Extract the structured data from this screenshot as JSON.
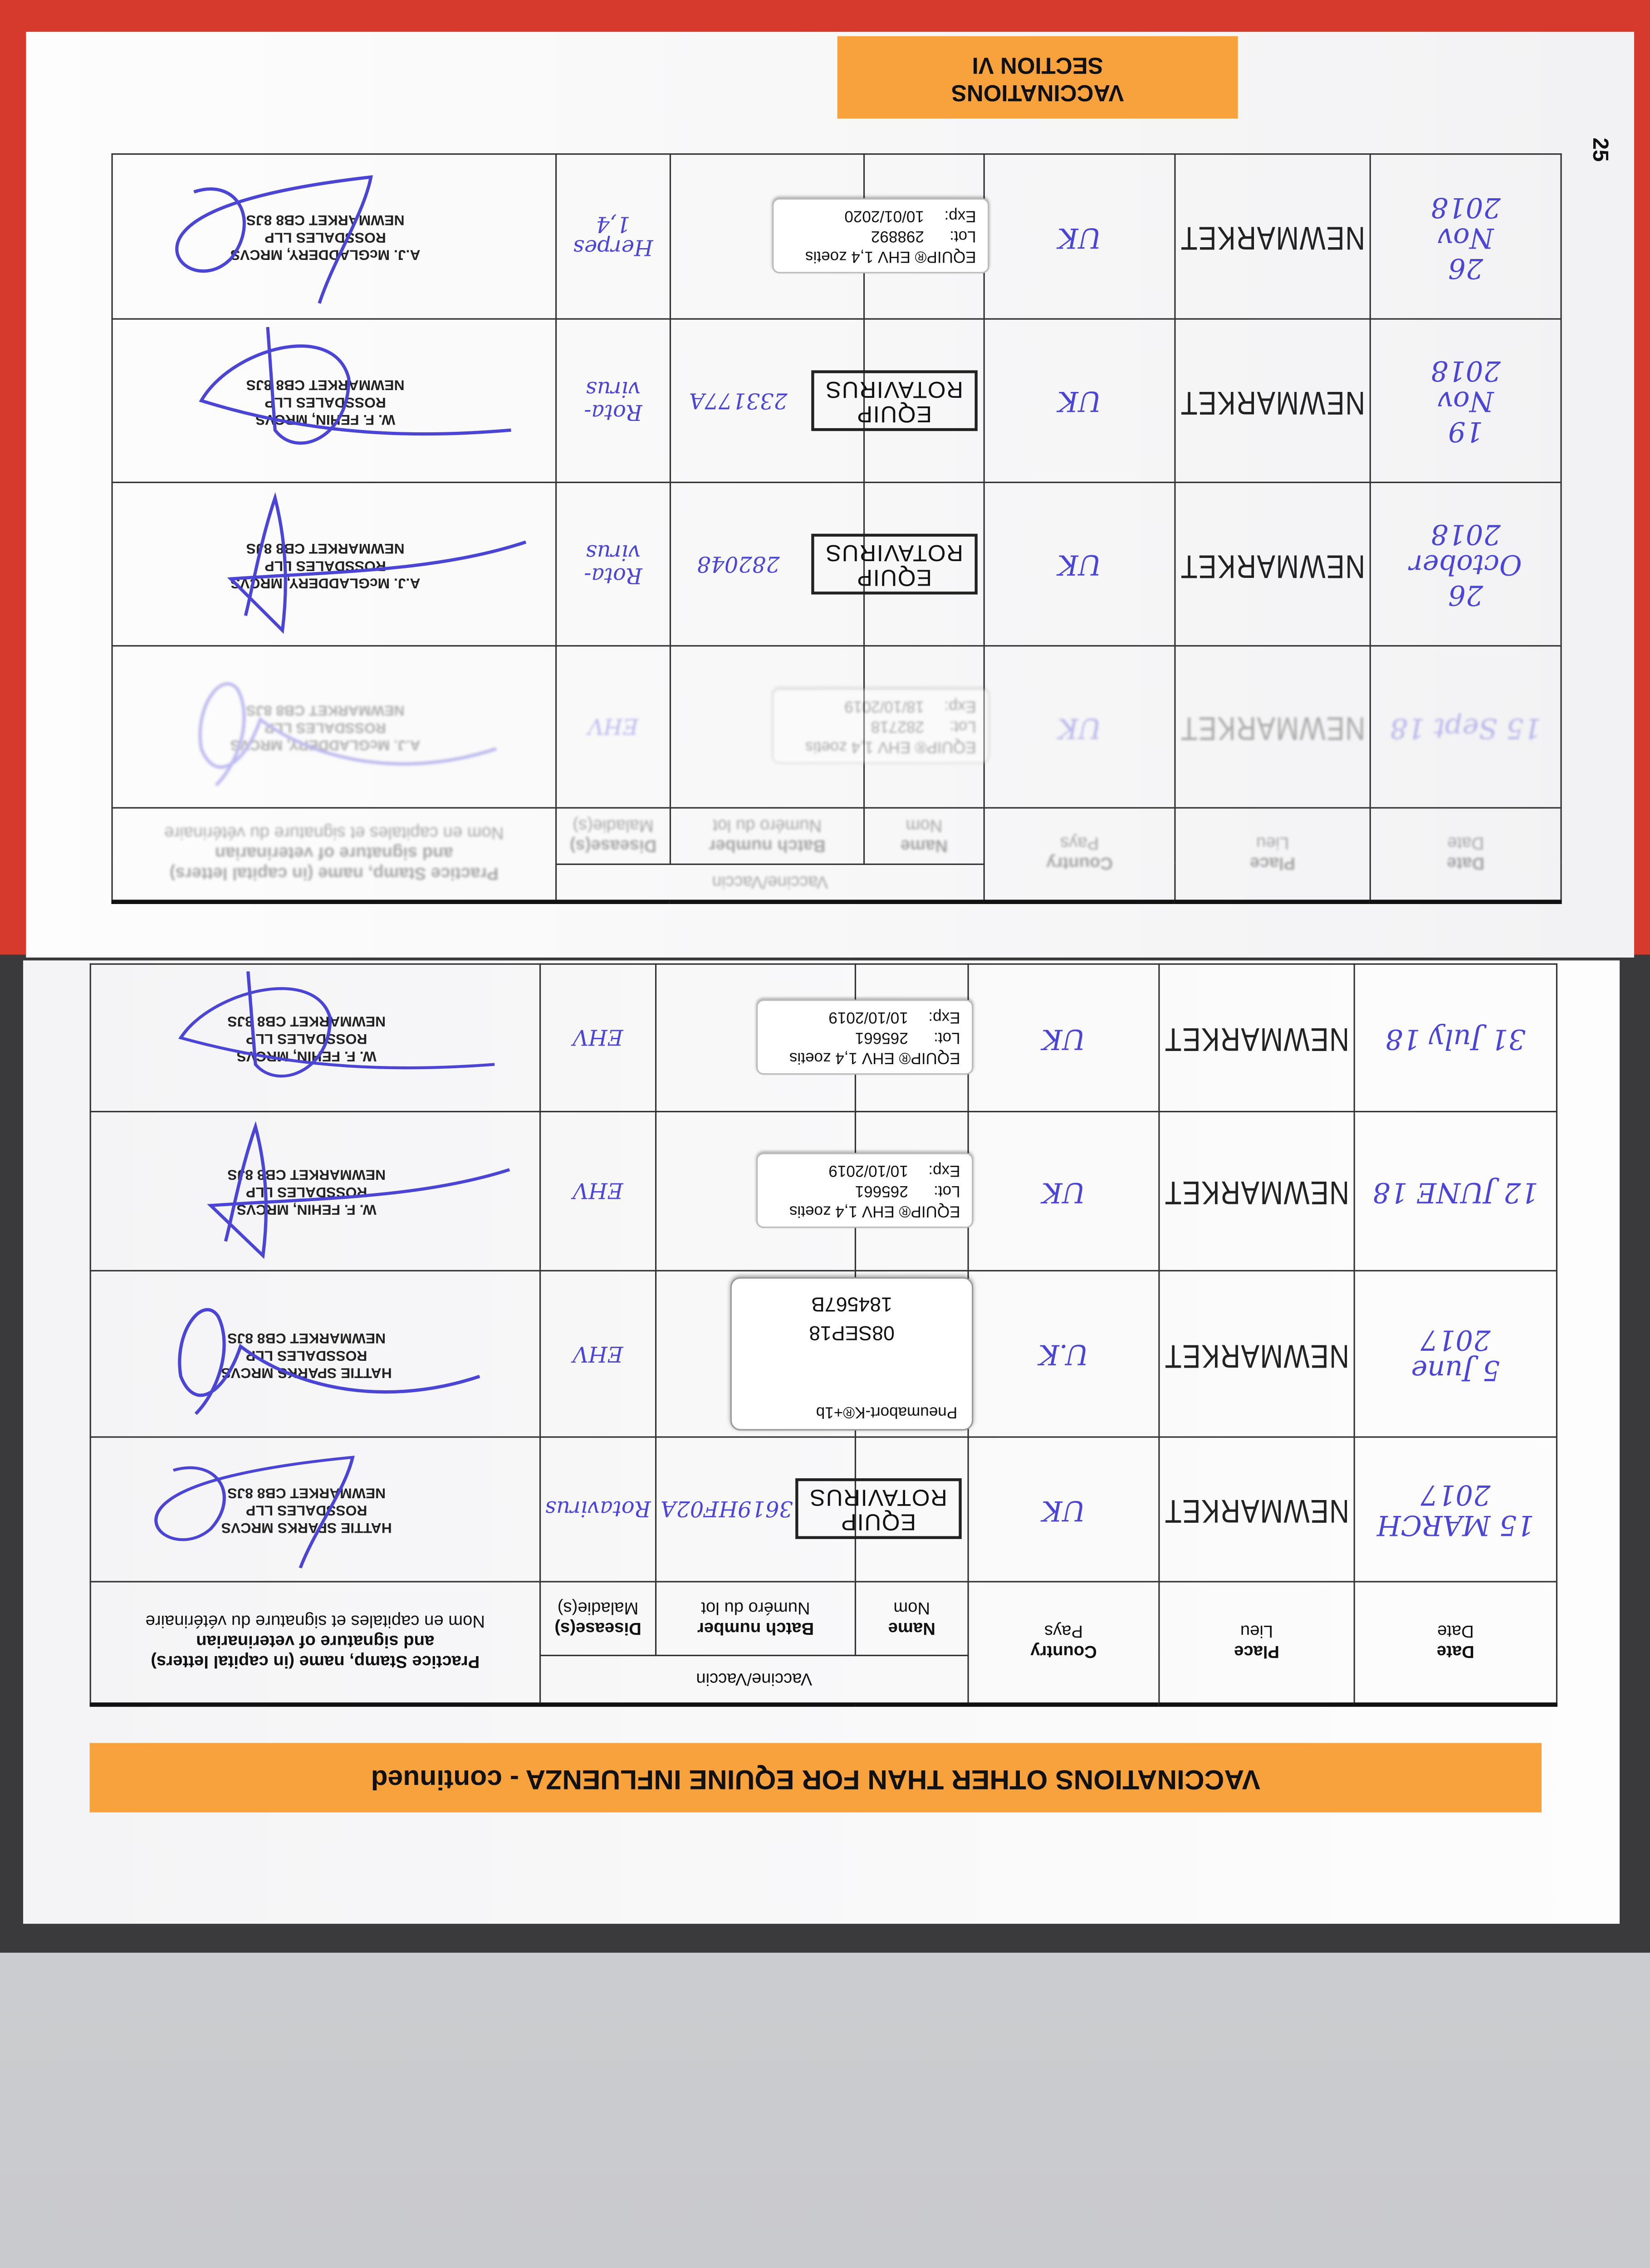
{
  "top_page": {
    "section_label": [
      "VACCINATIONS",
      "SECTION VI"
    ],
    "page_number": "25",
    "headers": {
      "date": [
        "Date",
        "Date"
      ],
      "place": [
        "Place",
        "Lieu"
      ],
      "country": [
        "Country",
        "Pays"
      ],
      "vaccine_group": "Vaccine/Vaccin",
      "name": [
        "Name",
        "Nom"
      ],
      "batch": [
        "Batch number",
        "Numéro du lot"
      ],
      "diseases": [
        "Disease(s)",
        "Maladie(s)"
      ],
      "stamp": [
        "Practice Stamp, name (in capital letters)",
        "and signature of veterinarian",
        "Nom en capitales et signature du vétérinaire"
      ]
    },
    "rows": [
      {
        "date": "15 Sept 18",
        "place": "NEWMARKET",
        "country": "UK",
        "sticker": {
          "type": "ehv",
          "title": "EQUIP® EHV 1,4 zoetis",
          "lot_label": "Lot:",
          "lot": "282718",
          "exp_label": "Exp:",
          "exp": "18/10/2019"
        },
        "batch": "",
        "diseases": "EHV",
        "vet": [
          "A.J. McGLADDERY, MRCVS",
          "ROSSDALES LLP",
          "NEWMARKET CB8 8JS"
        ],
        "faded": true
      },
      {
        "date": "26\nOctober\n2018",
        "place": "NEWMARKET",
        "country": "UK",
        "sticker": {
          "type": "rota",
          "line1": "EQUIP",
          "line2": "ROTAVIRUS"
        },
        "batch": "282048",
        "diseases": "Rota-\nvirus",
        "vet": [
          "A.J. McGLADDERY, MRCVS",
          "ROSSDALES LLP",
          "NEWMARKET CB8 8JS"
        ]
      },
      {
        "date": "19\nNov\n2018",
        "place": "NEWMARKET",
        "country": "UK",
        "sticker": {
          "type": "rota",
          "line1": "EQUIP",
          "line2": "ROTAVIRUS"
        },
        "batch": "233177A",
        "diseases": "Rota-\nvirus",
        "vet": [
          "W. F. FEHIN, MRCVS",
          "ROSSDALES LLP",
          "NEWMARKET CB8 8JS"
        ]
      },
      {
        "date": "26\nNov\n2018",
        "place": "NEWMARKET",
        "country": "UK",
        "sticker": {
          "type": "ehv",
          "title": "EQUIP® EHV 1,4 zoetis",
          "lot_label": "Lot:",
          "lot": "298892",
          "exp_label": "Exp:",
          "exp": "10/01/2020"
        },
        "batch": "",
        "diseases": "Herpes\n1,4",
        "vet": [
          "A.J. McGLADDERY, MRCVS",
          "ROSSDALES LLP",
          "NEWMARKET CB8 8JS"
        ]
      }
    ]
  },
  "bottom_page": {
    "banner": "VACCINATIONS OTHER THAN FOR EQUINE INFLUENZA - continued",
    "headers": {
      "date": [
        "Date",
        "Date"
      ],
      "place": [
        "Place",
        "Lieu"
      ],
      "country": [
        "Country",
        "Pays"
      ],
      "vaccine_group": "Vaccine/Vaccin",
      "name": [
        "Name",
        "Nom"
      ],
      "batch": [
        "Batch number",
        "Numéro du lot"
      ],
      "diseases": [
        "Disease(s)",
        "Maladie(s)"
      ],
      "stamp": [
        "Practice Stamp, name (in capital letters)",
        "and signature of veterinarian",
        "Nom en capitales et signature du vétérinaire"
      ]
    },
    "rows": [
      {
        "date": "15 MARCH\n2017",
        "place": "NEWMARKET",
        "country": "UK",
        "sticker": {
          "type": "rota",
          "line1": "EQUIP",
          "line2": "ROTAVIRUS"
        },
        "batch": "3619HF02A",
        "diseases": "Rotavirus",
        "vet": [
          "HATTIE SPARKS MRCVS",
          "ROSSDALES LLP",
          "NEWMARKET CB8 8JS"
        ]
      },
      {
        "date": "5 June\n2017",
        "place": "NEWMARKET",
        "country": "U.K",
        "sticker": {
          "type": "pneumabort",
          "product": "Pneumabort-K®+1b",
          "batch": "184567B",
          "expiry": "08SEP18"
        },
        "batch": "",
        "diseases": "EHV",
        "vet": [
          "HATTIE SPARKS MRCVS",
          "ROSSDALES LLP",
          "NEWMARKET CB8 8JS"
        ]
      },
      {
        "date": "12 JUNE 18",
        "place": "NEWMARKET",
        "country": "UK",
        "sticker": {
          "type": "ehv",
          "title": "EQUIP® EHV 1,4 zoetis",
          "lot_label": "Lot:",
          "lot": "265661",
          "exp_label": "Exp:",
          "exp": "10/10/2019"
        },
        "batch": "",
        "diseases": "EHV",
        "vet": [
          "W. F. FEHIN, MRCVS",
          "ROSSDALES LLP",
          "NEWMARKET CB8 8JS"
        ]
      },
      {
        "date": "31 July 18",
        "place": "NEWMARKET",
        "country": "UK",
        "sticker": {
          "type": "ehv",
          "title": "EQUIP® EHV 1,4 zoetis",
          "lot_label": "Lot:",
          "lot": "265661",
          "exp_label": "Exp:",
          "exp": "10/10/2019"
        },
        "batch": "",
        "diseases": "EHV",
        "vet": [
          "W. F. FEHIN, MRCVS",
          "ROSSDALES LLP",
          "NEWMARKET CB8 8JS"
        ]
      }
    ]
  },
  "colors": {
    "orange": "#f7a23c",
    "red_cover": "#d63a2c",
    "ink_blue": "#4b45d6"
  }
}
